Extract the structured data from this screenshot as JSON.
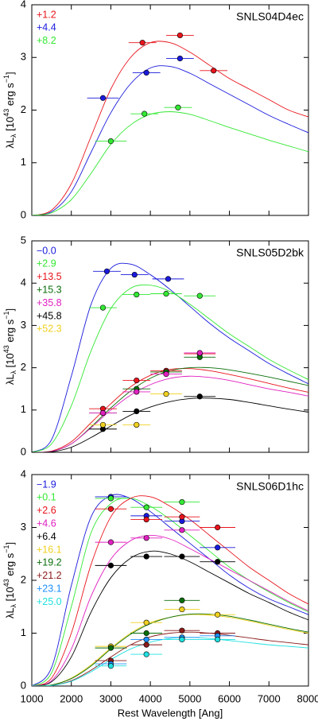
{
  "chart_data": [
    {
      "type": "scatter",
      "title": "SNLS04D4ec",
      "ylabel": [
        "λL",
        "λ",
        " [10",
        "43",
        " erg s",
        "−1",
        "]"
      ],
      "xlim": [
        1000,
        8000
      ],
      "xticks": [
        1000,
        2000,
        3000,
        4000,
        5000,
        6000,
        7000,
        8000
      ],
      "ylim": [
        0,
        4
      ],
      "yticks": [
        0,
        1,
        2,
        3,
        4
      ],
      "model_x": [
        1000,
        1500,
        2000,
        2500,
        3000,
        3500,
        4000,
        4500,
        5000,
        5500,
        6000,
        6500,
        7000,
        7500,
        8000
      ],
      "series": [
        {
          "name": "+1.2",
          "color": "#e8141c",
          "x": [
            3800,
            4750,
            5600
          ],
          "values": [
            3.28,
            3.42,
            2.75
          ],
          "x_err": [
            350,
            350,
            350
          ],
          "model": [
            0,
            0.1,
            0.6,
            1.5,
            2.4,
            3.0,
            3.28,
            3.28,
            3.1,
            2.85,
            2.6,
            2.4,
            2.2,
            2.0,
            1.87
          ]
        },
        {
          "name": "+4.4",
          "color": "#1a1adc",
          "x": [
            2800,
            3900,
            4750
          ],
          "values": [
            2.23,
            2.71,
            2.98
          ],
          "x_err": [
            400,
            350,
            350
          ],
          "model": [
            0,
            0.07,
            0.45,
            1.2,
            1.95,
            2.5,
            2.8,
            2.83,
            2.7,
            2.5,
            2.3,
            2.1,
            1.9,
            1.73,
            1.57
          ]
        },
        {
          "name": "+8.2",
          "color": "#33e833",
          "x": [
            3000,
            3850,
            4700
          ],
          "values": [
            1.41,
            1.93,
            2.05
          ],
          "x_err": [
            400,
            350,
            350
          ],
          "model": [
            0,
            0.05,
            0.3,
            0.8,
            1.35,
            1.72,
            1.92,
            1.97,
            1.92,
            1.8,
            1.67,
            1.55,
            1.43,
            1.32,
            1.21
          ]
        }
      ]
    },
    {
      "type": "scatter",
      "title": "SNLS05D2bk",
      "ylabel": [
        "λL",
        "λ",
        " [10",
        "43",
        " erg s",
        "−1",
        "]"
      ],
      "xlim": [
        1000,
        8000
      ],
      "xticks": [
        1000,
        2000,
        3000,
        4000,
        5000,
        6000,
        7000,
        8000
      ],
      "ylim": [
        0,
        5
      ],
      "yticks": [
        0,
        1,
        2,
        3,
        4,
        5
      ],
      "model_x": [
        1000,
        1500,
        2000,
        2500,
        3000,
        3500,
        4000,
        4500,
        5000,
        5500,
        6000,
        6500,
        7000,
        7500,
        8000
      ],
      "series": [
        {
          "name": "−0.0",
          "color": "#1a1adc",
          "x": [
            2900,
            3600,
            4450
          ],
          "values": [
            4.28,
            4.2,
            4.1
          ],
          "x_err": [
            350,
            350,
            400
          ],
          "model": [
            0,
            0.3,
            1.8,
            3.5,
            4.35,
            4.45,
            4.2,
            3.85,
            3.45,
            3.05,
            2.7,
            2.4,
            2.1,
            1.85,
            1.62
          ]
        },
        {
          "name": "+2.9",
          "color": "#33e833",
          "x": [
            2800,
            3650,
            4400,
            5250
          ],
          "values": [
            3.42,
            3.73,
            3.75,
            3.7
          ],
          "x_err": [
            350,
            350,
            400,
            400
          ],
          "model": [
            0,
            0.2,
            1.1,
            2.4,
            3.4,
            3.88,
            3.95,
            3.8,
            3.5,
            3.15,
            2.8,
            2.5,
            2.2,
            1.95,
            1.72
          ]
        },
        {
          "name": "+13.5",
          "color": "#e8141c",
          "x": [
            2800,
            3650,
            4400,
            5250
          ],
          "values": [
            1.03,
            1.7,
            1.93,
            2.33
          ],
          "x_err": [
            350,
            350,
            400,
            400
          ],
          "model": [
            0,
            0.03,
            0.25,
            0.7,
            1.15,
            1.55,
            1.82,
            1.96,
            1.98,
            1.93,
            1.84,
            1.74,
            1.63,
            1.52,
            1.42
          ]
        },
        {
          "name": "+15.3",
          "color": "#0a6e0a",
          "x": [
            2800,
            3650,
            4400,
            5250
          ],
          "values": [
            0.93,
            1.5,
            1.9,
            2.25
          ],
          "x_err": [
            350,
            350,
            400,
            400
          ],
          "model": [
            0,
            0.02,
            0.2,
            0.6,
            1.05,
            1.45,
            1.75,
            1.93,
            2.0,
            2.0,
            1.95,
            1.87,
            1.78,
            1.68,
            1.58
          ]
        },
        {
          "name": "+35.8",
          "color": "#e020c0",
          "x": [
            2800,
            3650,
            4400,
            5250
          ],
          "values": [
            0.93,
            1.43,
            1.85,
            2.35
          ],
          "x_err": [
            350,
            350,
            400,
            400
          ],
          "model": [
            0,
            0.02,
            0.2,
            0.58,
            1.0,
            1.35,
            1.6,
            1.75,
            1.8,
            1.77,
            1.7,
            1.6,
            1.5,
            1.42,
            1.33
          ]
        },
        {
          "name": "+45.8",
          "color": "#000000",
          "x": [
            2800,
            3650,
            5250
          ],
          "values": [
            0.55,
            0.97,
            1.32
          ],
          "x_err": [
            350,
            350,
            400
          ],
          "model": [
            0,
            0.01,
            0.12,
            0.35,
            0.62,
            0.88,
            1.07,
            1.2,
            1.27,
            1.28,
            1.25,
            1.18,
            1.1,
            1.02,
            0.95
          ]
        },
        {
          "name": "+52.3",
          "color": "#f0d020",
          "x": [
            2800,
            3650,
            4400
          ],
          "values": [
            0.65,
            0.65,
            1.38
          ],
          "x_err": [
            350,
            350,
            400
          ]
        }
      ]
    },
    {
      "type": "scatter",
      "title": "SNLS06D1hc",
      "ylabel": [
        "λL",
        "λ",
        " [10",
        "43",
        " erg s",
        "−1",
        "]"
      ],
      "xlabel": "Rest Wavelength [Ang]",
      "xlim": [
        1000,
        8000
      ],
      "xticks": [
        1000,
        2000,
        3000,
        4000,
        5000,
        6000,
        7000,
        8000
      ],
      "ylim": [
        0,
        4
      ],
      "yticks": [
        0,
        1,
        2,
        3,
        4
      ],
      "model_x": [
        1000,
        1500,
        2000,
        2500,
        3000,
        3500,
        4000,
        4500,
        5000,
        5500,
        6000,
        6500,
        7000,
        7500,
        8000
      ],
      "series": [
        {
          "name": "−1.9",
          "color": "#1a1adc",
          "x": [
            3000,
            3900,
            4800,
            5700
          ],
          "values": [
            3.58,
            3.22,
            3.12,
            2.62
          ],
          "x_err": [
            400,
            400,
            450,
            450
          ],
          "model": [
            0,
            0.35,
            1.9,
            3.2,
            3.6,
            3.55,
            3.3,
            3.0,
            2.7,
            2.4,
            2.1,
            1.85,
            1.65,
            1.5,
            1.35
          ]
        },
        {
          "name": "+0.1",
          "color": "#33e833",
          "x": [
            3000,
            3900,
            4800
          ],
          "values": [
            3.55,
            3.38,
            3.48
          ],
          "x_err": [
            400,
            400,
            450
          ],
          "model": [
            0,
            0.25,
            1.5,
            2.9,
            3.45,
            3.55,
            3.4,
            3.15,
            2.85,
            2.55,
            2.25,
            2.0,
            1.78,
            1.58,
            1.4
          ]
        },
        {
          "name": "+2.6",
          "color": "#e8141c",
          "x": [
            3000,
            3900,
            4800,
            5700
          ],
          "values": [
            3.35,
            3.15,
            3.2,
            3.0
          ],
          "x_err": [
            400,
            400,
            450,
            450
          ],
          "model": [
            0,
            0.15,
            1.0,
            2.3,
            3.2,
            3.55,
            3.58,
            3.4,
            3.15,
            2.85,
            2.55,
            2.25,
            2.0,
            1.75,
            1.55
          ]
        },
        {
          "name": "+4.6",
          "color": "#e020c0",
          "x": [
            3000,
            3900,
            4800
          ],
          "values": [
            2.72,
            2.8,
            2.95
          ],
          "x_err": [
            400,
            400,
            450
          ],
          "model": [
            0,
            0.1,
            0.7,
            1.7,
            2.4,
            2.75,
            2.85,
            2.78,
            2.6,
            2.4,
            2.2,
            2.0,
            1.8,
            1.6,
            1.42
          ]
        },
        {
          "name": "+6.4",
          "color": "#000000",
          "x": [
            3000,
            3900,
            4800,
            5700
          ],
          "values": [
            2.28,
            2.45,
            2.45,
            2.35
          ],
          "x_err": [
            400,
            400,
            450,
            450
          ],
          "model": [
            0,
            0.08,
            0.55,
            1.4,
            2.05,
            2.42,
            2.55,
            2.5,
            2.35,
            2.15,
            1.95,
            1.75,
            1.58,
            1.4,
            1.25
          ]
        },
        {
          "name": "+16.1",
          "color": "#f0d020",
          "x": [
            3000,
            3900,
            4800,
            5700
          ],
          "values": [
            0.75,
            1.2,
            1.45,
            1.35
          ],
          "x_err": [
            400,
            400,
            450,
            450
          ],
          "model": [
            0,
            0.02,
            0.15,
            0.4,
            0.72,
            1.0,
            1.2,
            1.3,
            1.35,
            1.34,
            1.3,
            1.23,
            1.15,
            1.07,
            1.0
          ]
        },
        {
          "name": "+19.2",
          "color": "#0a6e0a",
          "x": [
            3000,
            3900,
            4800
          ],
          "values": [
            0.72,
            1.0,
            1.62
          ],
          "x_err": [
            400,
            400,
            450
          ],
          "model": [
            0,
            0.02,
            0.14,
            0.38,
            0.7,
            0.98,
            1.18,
            1.3,
            1.36,
            1.36,
            1.32,
            1.25,
            1.17,
            1.09,
            1.02
          ]
        },
        {
          "name": "+21.2",
          "color": "#8b1a1a",
          "x": [
            3000,
            3900,
            4800,
            5700
          ],
          "values": [
            0.48,
            0.78,
            1.05,
            1.0
          ],
          "x_err": [
            400,
            400,
            450,
            450
          ],
          "model": [
            0,
            0.01,
            0.1,
            0.3,
            0.55,
            0.78,
            0.93,
            1.0,
            1.02,
            1.0,
            0.96,
            0.91,
            0.86,
            0.82,
            0.78
          ]
        },
        {
          "name": "+23.1",
          "color": "#1e90ff",
          "x": [
            3000,
            3900,
            4800,
            5700
          ],
          "values": [
            0.42,
            0.88,
            0.92,
            0.95
          ],
          "x_err": [
            400,
            400,
            450,
            450
          ]
        },
        {
          "name": "+25.0",
          "color": "#20e0e0",
          "x": [
            3000,
            3900,
            4800,
            5700
          ],
          "values": [
            0.38,
            0.6,
            0.88,
            0.88
          ],
          "x_err": [
            400,
            400,
            450,
            450
          ],
          "model": [
            0,
            0.01,
            0.09,
            0.27,
            0.5,
            0.7,
            0.83,
            0.9,
            0.92,
            0.9,
            0.86,
            0.82,
            0.78,
            0.75,
            0.72
          ]
        }
      ]
    }
  ]
}
